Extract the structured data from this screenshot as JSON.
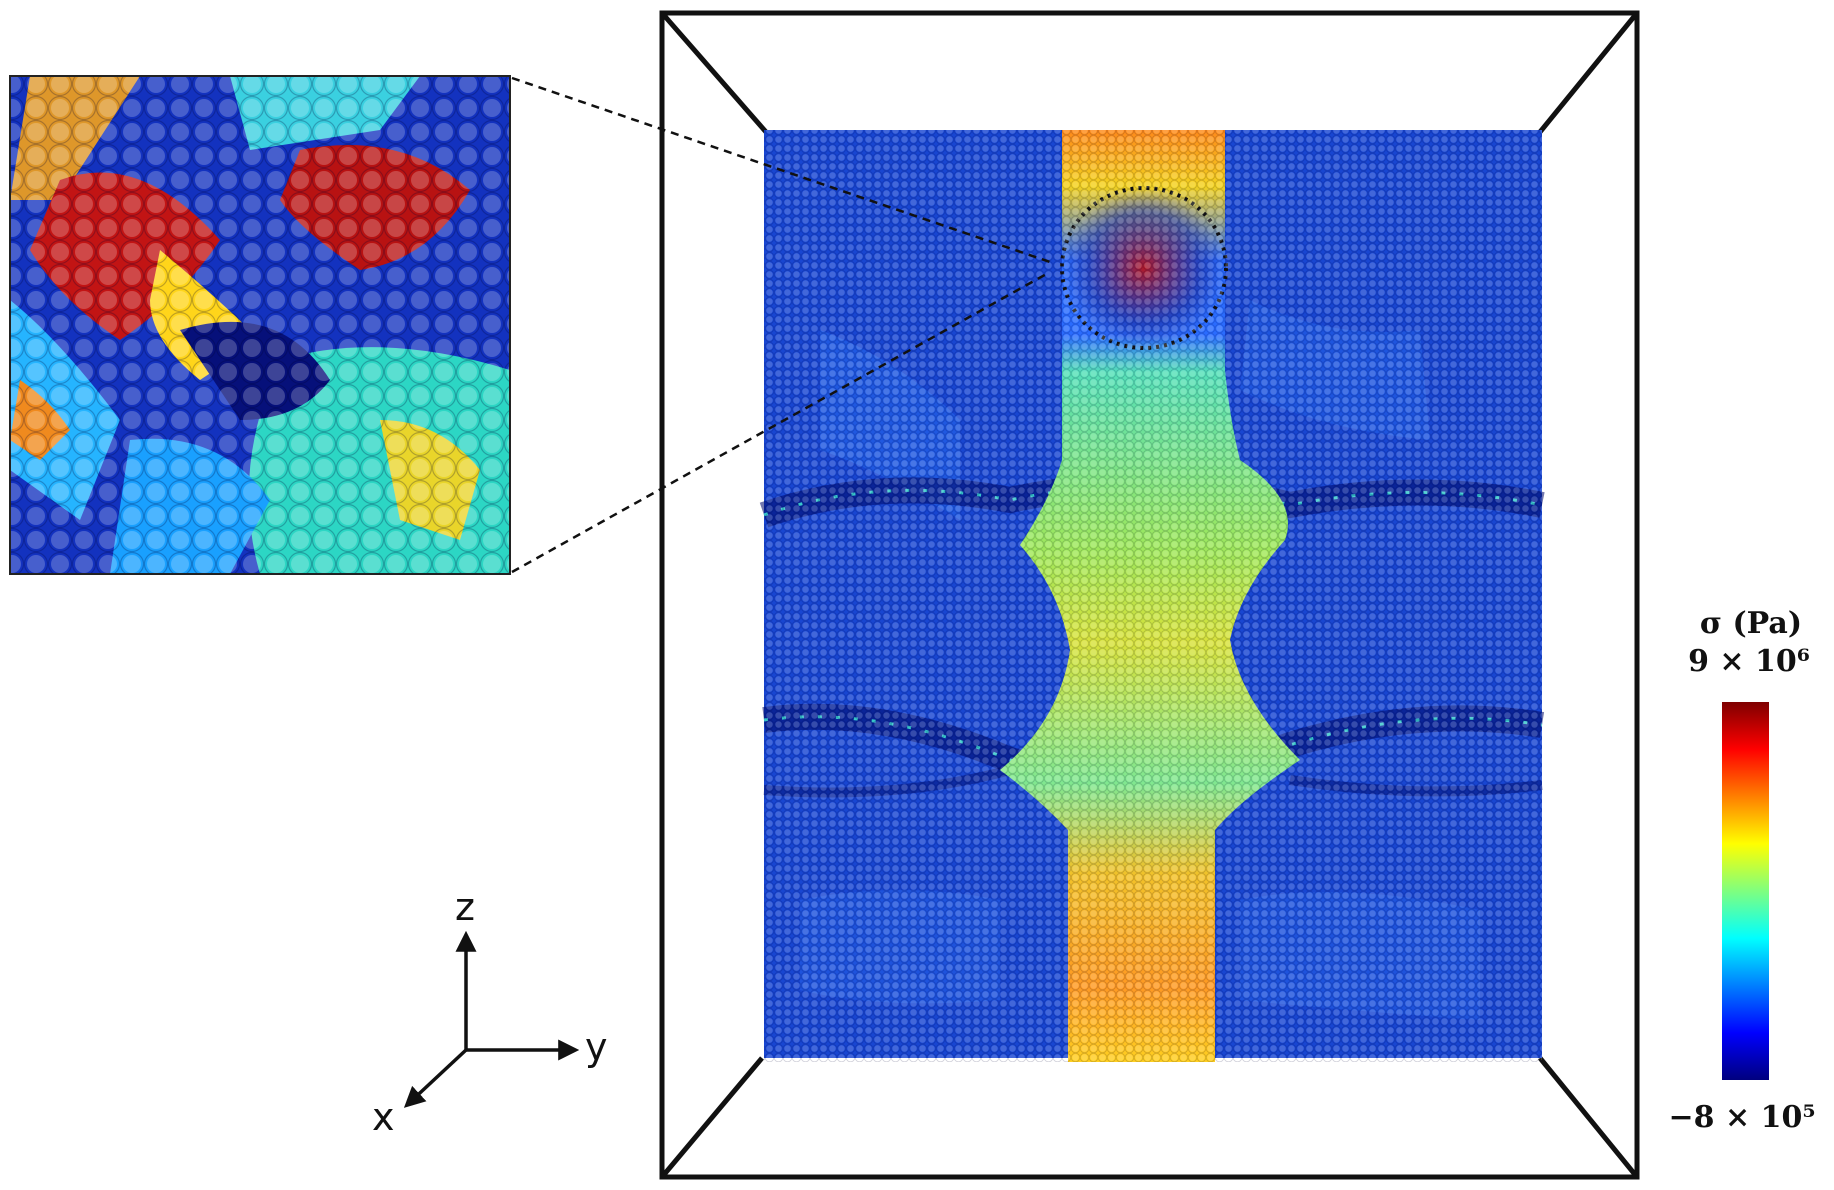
{
  "colorbar": {
    "title": "σ (Pa)",
    "max_label": "9 × 10⁶",
    "min_label": "−8 × 10⁵",
    "colors": [
      "#00007f",
      "#0000ff",
      "#007fff",
      "#00ffff",
      "#7fff7f",
      "#ffff00",
      "#ff7f00",
      "#ff0000",
      "#7f0000"
    ]
  },
  "axes": {
    "z": "z",
    "y": "y",
    "x": "x"
  }
}
